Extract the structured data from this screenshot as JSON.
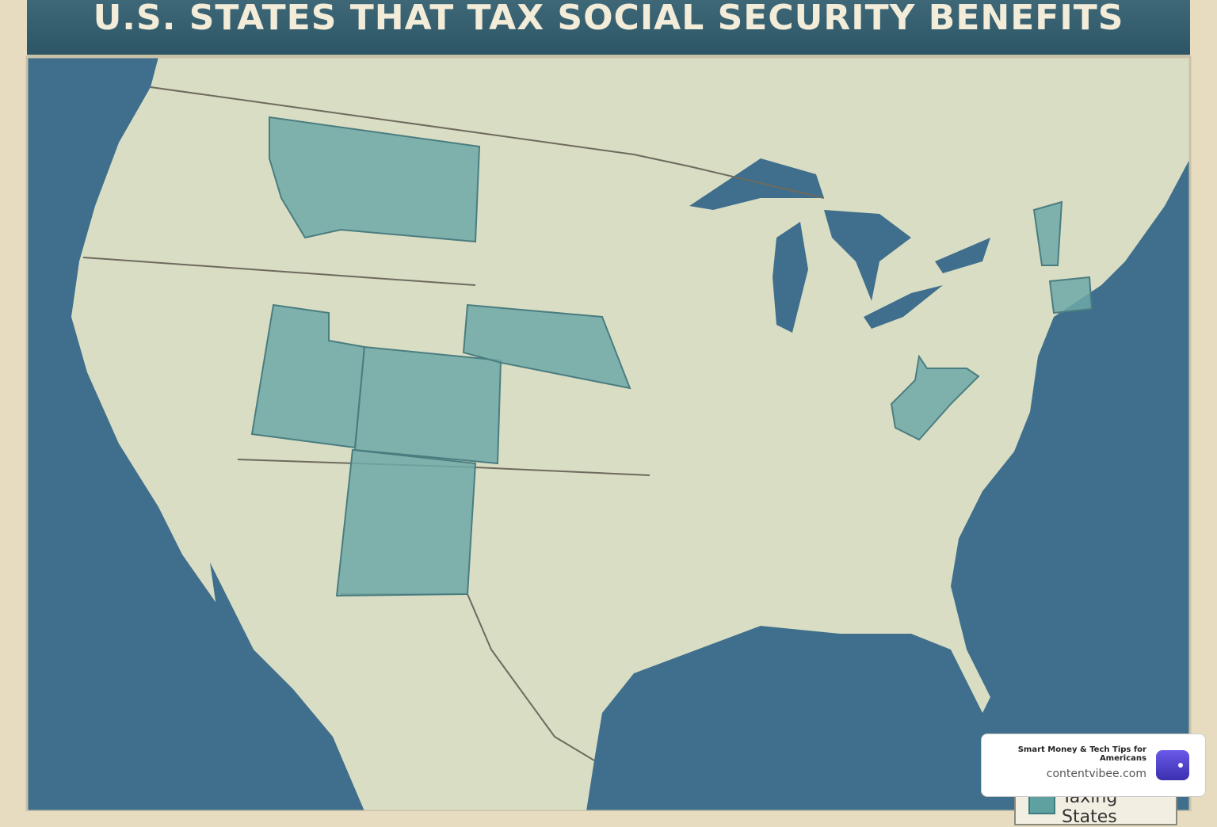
{
  "header": {
    "title": "U.S. STATES THAT TAX SOCIAL SECURITY BENEFITS"
  },
  "legend": {
    "items": [
      {
        "label": "Taxing States"
      }
    ]
  },
  "badge": {
    "title": "Smart Money & Tech Tips for Americans",
    "url": "contentvibee.com"
  }
}
